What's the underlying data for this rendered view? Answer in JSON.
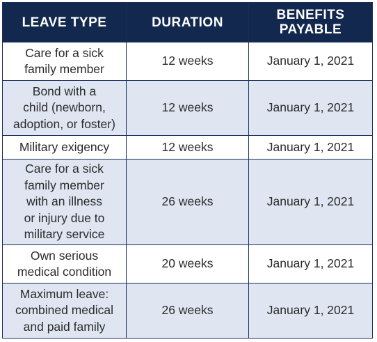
{
  "headers": {
    "leave_type": "LEAVE TYPE",
    "duration": "DURATION",
    "benefits_line1": "BENEFITS",
    "benefits_line2": "PAYABLE"
  },
  "rows": [
    {
      "leave_type_lines": [
        "Care for a sick",
        "family member"
      ],
      "duration": "12 weeks",
      "benefits_payable": "January 1, 2021"
    },
    {
      "leave_type_lines": [
        "Bond with a",
        "child (newborn,",
        "adoption, or foster)"
      ],
      "duration": "12 weeks",
      "benefits_payable": "January 1, 2021"
    },
    {
      "leave_type_lines": [
        "Military exigency"
      ],
      "duration": "12 weeks",
      "benefits_payable": "January 1, 2021"
    },
    {
      "leave_type_lines": [
        "Care for a sick",
        "family member",
        "with an illness",
        "or injury due to",
        "military service"
      ],
      "duration": "26 weeks",
      "benefits_payable": "January 1, 2021"
    },
    {
      "leave_type_lines": [
        "Own serious",
        "medical condition"
      ],
      "duration": "20 weeks",
      "benefits_payable": "January 1, 2021"
    },
    {
      "leave_type_lines": [
        "Maximum leave:",
        "combined medical",
        "and paid family"
      ],
      "duration": "26 weeks",
      "benefits_payable": "January 1, 2021"
    }
  ],
  "colors": {
    "header_bg": "#13284f",
    "header_text": "#ffffff",
    "border": "#1b2d5b",
    "row_shade": "#dfe6f2",
    "row_light": "#ffffff",
    "body_text": "#2b2b2b"
  }
}
